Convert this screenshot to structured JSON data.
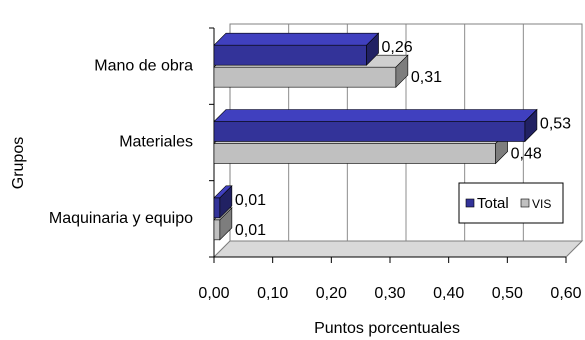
{
  "chart_data": {
    "type": "bar",
    "orientation": "horizontal",
    "style": "3d-clustered",
    "categories": [
      "Mano de obra",
      "Materiales",
      "Maquinaria y equipo"
    ],
    "series": [
      {
        "name": "Total",
        "values": [
          0.26,
          0.53,
          0.01
        ],
        "labels": [
          "0,26",
          "0,53",
          "0,01"
        ],
        "color": "#333399"
      },
      {
        "name": "VIS",
        "values": [
          0.31,
          0.48,
          0.01
        ],
        "labels": [
          "0,31",
          "0,48",
          "0,01"
        ],
        "color": "#C0C0C0"
      }
    ],
    "xlabel": "Puntos porcentuales",
    "ylabel": "Grupos",
    "xlim": [
      0,
      0.6
    ],
    "xticks": [
      "0,00",
      "0,10",
      "0,20",
      "0,30",
      "0,40",
      "0,50",
      "0,60"
    ],
    "grid": "vertical",
    "legend_position": "bottom-right"
  }
}
